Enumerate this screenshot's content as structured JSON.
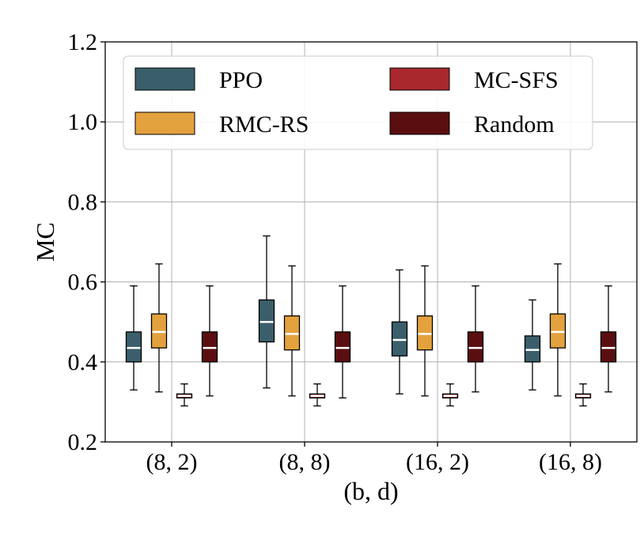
{
  "chart_data": {
    "type": "box",
    "title": "",
    "xlabel": "(b, d)",
    "ylabel": "MC",
    "ylim": [
      0.2,
      1.2
    ],
    "yticks": [
      "0.2",
      "0.4",
      "0.6",
      "0.8",
      "1.0",
      "1.2"
    ],
    "categories": [
      "(8, 2)",
      "(8, 8)",
      "(16, 2)",
      "(16, 8)"
    ],
    "grid": true,
    "legend_position": "top",
    "series": [
      {
        "name": "PPO",
        "color": "#3a5f6b",
        "stats": [
          {
            "whislo": 0.33,
            "q1": 0.4,
            "med": 0.435,
            "q3": 0.475,
            "whishi": 0.59
          },
          {
            "whislo": 0.335,
            "q1": 0.45,
            "med": 0.5,
            "q3": 0.555,
            "whishi": 0.715
          },
          {
            "whislo": 0.32,
            "q1": 0.415,
            "med": 0.455,
            "q3": 0.5,
            "whishi": 0.63
          },
          {
            "whislo": 0.33,
            "q1": 0.4,
            "med": 0.43,
            "q3": 0.465,
            "whishi": 0.555
          }
        ]
      },
      {
        "name": "RMC-RS",
        "color": "#e3a23e",
        "stats": [
          {
            "whislo": 0.325,
            "q1": 0.435,
            "med": 0.475,
            "q3": 0.52,
            "whishi": 0.645
          },
          {
            "whislo": 0.315,
            "q1": 0.43,
            "med": 0.47,
            "q3": 0.515,
            "whishi": 0.64
          },
          {
            "whislo": 0.315,
            "q1": 0.43,
            "med": 0.47,
            "q3": 0.515,
            "whishi": 0.64
          },
          {
            "whislo": 0.315,
            "q1": 0.435,
            "med": 0.475,
            "q3": 0.52,
            "whishi": 0.645
          }
        ]
      },
      {
        "name": "MC-SFS",
        "color": "#a8282d",
        "stats": [
          {
            "whislo": 0.29,
            "q1": 0.31,
            "med": 0.315,
            "q3": 0.32,
            "whishi": 0.345
          },
          {
            "whislo": 0.29,
            "q1": 0.31,
            "med": 0.315,
            "q3": 0.32,
            "whishi": 0.345
          },
          {
            "whislo": 0.29,
            "q1": 0.31,
            "med": 0.315,
            "q3": 0.32,
            "whishi": 0.345
          },
          {
            "whislo": 0.29,
            "q1": 0.31,
            "med": 0.315,
            "q3": 0.32,
            "whishi": 0.345
          }
        ]
      },
      {
        "name": "Random",
        "color": "#5a0e10",
        "stats": [
          {
            "whislo": 0.315,
            "q1": 0.4,
            "med": 0.435,
            "q3": 0.475,
            "whishi": 0.59
          },
          {
            "whislo": 0.31,
            "q1": 0.4,
            "med": 0.435,
            "q3": 0.475,
            "whishi": 0.59
          },
          {
            "whislo": 0.325,
            "q1": 0.4,
            "med": 0.435,
            "q3": 0.475,
            "whishi": 0.59
          },
          {
            "whislo": 0.325,
            "q1": 0.4,
            "med": 0.435,
            "q3": 0.475,
            "whishi": 0.59
          }
        ]
      }
    ]
  }
}
